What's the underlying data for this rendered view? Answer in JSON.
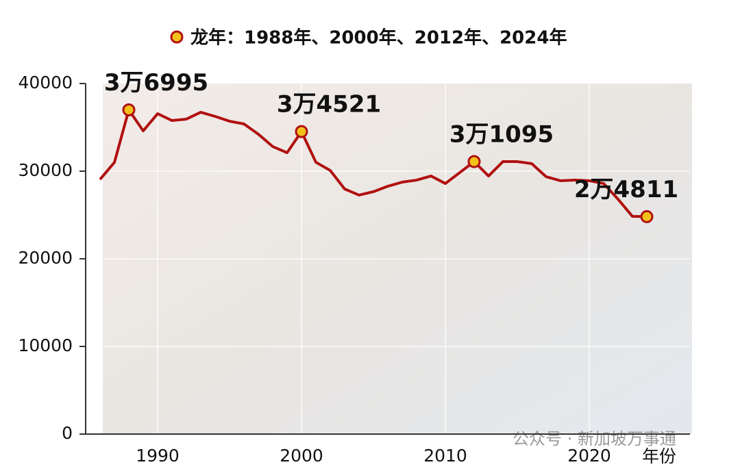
{
  "chart_data": {
    "type": "line",
    "legend": "龙年：1988年、2000年、2012年、2024年",
    "x_label": "年份",
    "watermark": "公众号 · 新加坡万事通",
    "x": [
      1986,
      1987,
      1988,
      1989,
      1990,
      1991,
      1992,
      1993,
      1994,
      1995,
      1996,
      1997,
      1998,
      1999,
      2000,
      2001,
      2002,
      2003,
      2004,
      2005,
      2006,
      2007,
      2008,
      2009,
      2010,
      2011,
      2012,
      2013,
      2014,
      2015,
      2016,
      2017,
      2018,
      2019,
      2020,
      2021,
      2022,
      2023,
      2024
    ],
    "series": [
      {
        "name": null,
        "color": "#b01010",
        "values": [
          29060,
          31000,
          36995,
          34600,
          36560,
          35780,
          35940,
          36720,
          36250,
          35700,
          35390,
          34220,
          32810,
          32110,
          34521,
          31020,
          30080,
          27970,
          27270,
          27660,
          28280,
          28750,
          28980,
          29450,
          28590,
          29840,
          31095,
          29450,
          31090,
          31090,
          30860,
          29370,
          28910,
          28980,
          28910,
          28590,
          26800,
          24840,
          24811
        ]
      }
    ],
    "highlight": {
      "color": "#f2c21b",
      "x": [
        1988,
        2000,
        2012,
        2024
      ],
      "values": [
        36995,
        34521,
        31095,
        24811
      ],
      "value_labels": [
        "3万6995",
        "3万4521",
        "3万1095",
        "2万4811"
      ]
    },
    "xlim": [
      1985,
      2027
    ],
    "ylim": [
      0,
      40000
    ],
    "xticks": [
      1990,
      2000,
      2010,
      2020
    ],
    "yticks": [
      0,
      10000,
      20000,
      30000,
      40000
    ],
    "grid": true
  }
}
